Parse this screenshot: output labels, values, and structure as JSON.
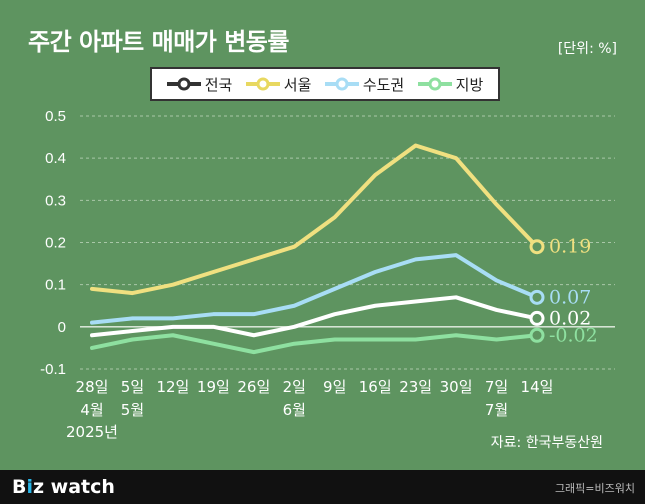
{
  "title": "주간 아파트 매매가 변동률",
  "unit": "[단위: %]",
  "source": "자료: 한국부동산원",
  "brand": {
    "part1": "B",
    "accent": "i",
    "part2": "z watch"
  },
  "credit": "그래픽=비즈워치",
  "legend": [
    {
      "name": "전국",
      "color": "#ffffff"
    },
    {
      "name": "서울",
      "color": "#f0e080"
    },
    {
      "name": "수도권",
      "color": "#a8ddf5"
    },
    {
      "name": "지방",
      "color": "#8ee0a0"
    }
  ],
  "chart_data": {
    "type": "line",
    "x": [
      "28일",
      "5일",
      "12일",
      "19일",
      "26일",
      "2일",
      "9일",
      "16일",
      "23일",
      "30일",
      "7일",
      "14일"
    ],
    "x_sublabels": [
      [
        "4월",
        "2025년"
      ],
      [
        "5월"
      ],
      [],
      [],
      [],
      [
        "6월"
      ],
      [],
      [],
      [],
      [],
      [
        "7월"
      ],
      []
    ],
    "ylim": [
      -0.1,
      0.5
    ],
    "yticks": [
      0.5,
      0.4,
      0.3,
      0.2,
      0.1,
      0,
      -0.1
    ],
    "ytick_labels": [
      "0.5",
      "0.4",
      "0.3",
      "0.2",
      "0.1",
      "0",
      "-0.1"
    ],
    "grid": true,
    "legend_position": "top-center",
    "series": [
      {
        "name": "서울",
        "color": "#f0e080",
        "values": [
          0.09,
          0.08,
          0.1,
          0.13,
          0.16,
          0.19,
          0.26,
          0.36,
          0.43,
          0.4,
          0.29,
          0.19
        ],
        "end_label": "0.19"
      },
      {
        "name": "수도권",
        "color": "#a8ddf5",
        "values": [
          0.01,
          0.02,
          0.02,
          0.03,
          0.03,
          0.05,
          0.09,
          0.13,
          0.16,
          0.17,
          0.11,
          0.07
        ],
        "end_label": "0.07"
      },
      {
        "name": "전국",
        "color": "#ffffff",
        "values": [
          -0.02,
          -0.01,
          0.0,
          0.0,
          -0.02,
          0.0,
          0.03,
          0.05,
          0.06,
          0.07,
          0.04,
          0.02
        ],
        "end_label": "0.02"
      },
      {
        "name": "지방",
        "color": "#8ee0a0",
        "values": [
          -0.05,
          -0.03,
          -0.02,
          -0.04,
          -0.06,
          -0.04,
          -0.03,
          -0.03,
          -0.03,
          -0.02,
          -0.03,
          -0.02
        ],
        "end_label": "-0.02"
      }
    ]
  }
}
